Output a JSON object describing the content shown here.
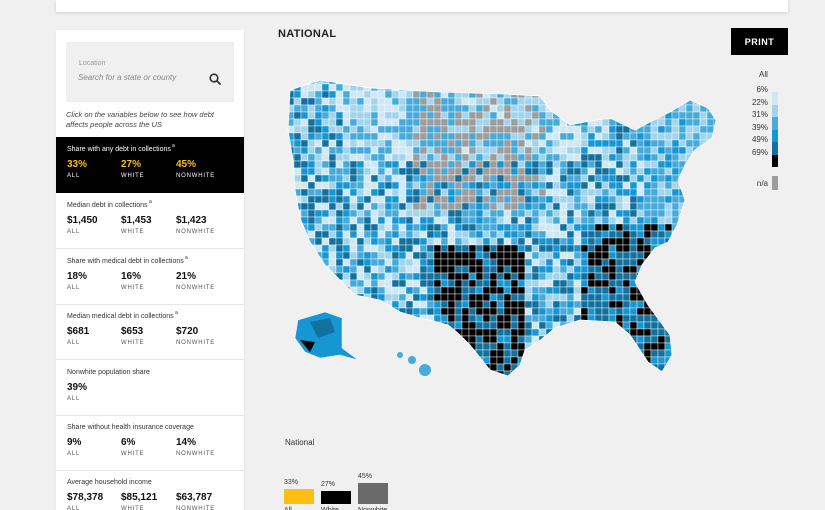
{
  "search": {
    "label": "Location",
    "placeholder": "Search for a state or county"
  },
  "hint": "Click on the variables below to see how debt affects people across the US",
  "variables": [
    {
      "label": "Share with any debt in collections",
      "sup": "a",
      "stats": [
        {
          "value": "33%",
          "cap": "ALL"
        },
        {
          "value": "27%",
          "cap": "WHITE"
        },
        {
          "value": "45%",
          "cap": "NONWHITE"
        }
      ]
    },
    {
      "label": "Median debt in collections",
      "sup": "a",
      "stats": [
        {
          "value": "$1,450",
          "cap": "ALL"
        },
        {
          "value": "$1,453",
          "cap": "WHITE"
        },
        {
          "value": "$1,423",
          "cap": "NONWHITE"
        }
      ]
    },
    {
      "label": "Share with medical debt in collections",
      "sup": "a",
      "stats": [
        {
          "value": "18%",
          "cap": "ALL"
        },
        {
          "value": "16%",
          "cap": "WHITE"
        },
        {
          "value": "21%",
          "cap": "NONWHITE"
        }
      ]
    },
    {
      "label": "Median medical debt in collections",
      "sup": "a",
      "stats": [
        {
          "value": "$681",
          "cap": "ALL"
        },
        {
          "value": "$653",
          "cap": "WHITE"
        },
        {
          "value": "$720",
          "cap": "NONWHITE"
        }
      ]
    },
    {
      "label": "Nonwhite population share",
      "sup": "",
      "stats": [
        {
          "value": "39%",
          "cap": "ALL"
        }
      ]
    },
    {
      "label": "Share without health insurance coverage",
      "sup": "",
      "stats": [
        {
          "value": "9%",
          "cap": "ALL"
        },
        {
          "value": "6%",
          "cap": "WHITE"
        },
        {
          "value": "14%",
          "cap": "NONWHITE"
        }
      ]
    },
    {
      "label": "Average household income",
      "sup": "",
      "stats": [
        {
          "value": "$78,378",
          "cap": "ALL"
        },
        {
          "value": "$85,121",
          "cap": "WHITE"
        },
        {
          "value": "$63,787",
          "cap": "NONWHITE"
        }
      ]
    }
  ],
  "active_variable": 0,
  "header": {
    "title": "NATIONAL",
    "print_label": "PRINT"
  },
  "legend": {
    "group_label": "All",
    "ticks": [
      "6%",
      "22%",
      "31%",
      "39%",
      "49%",
      "69%"
    ],
    "colors": [
      "#cfe8f3",
      "#a2d4ec",
      "#46abdb",
      "#1696d2",
      "#12719e",
      "#000000"
    ],
    "na_label": "n/a",
    "na_color": "#9d9d9d"
  },
  "national_bars": {
    "title": "National",
    "items": [
      {
        "name": "All",
        "value": 33,
        "label": "33%",
        "color": "#fdbf11"
      },
      {
        "name": "White",
        "value": 27,
        "label": "27%",
        "color": "#000000"
      },
      {
        "name": "Nonwhite",
        "value": 45,
        "label": "45%",
        "color": "#696969"
      }
    ]
  }
}
